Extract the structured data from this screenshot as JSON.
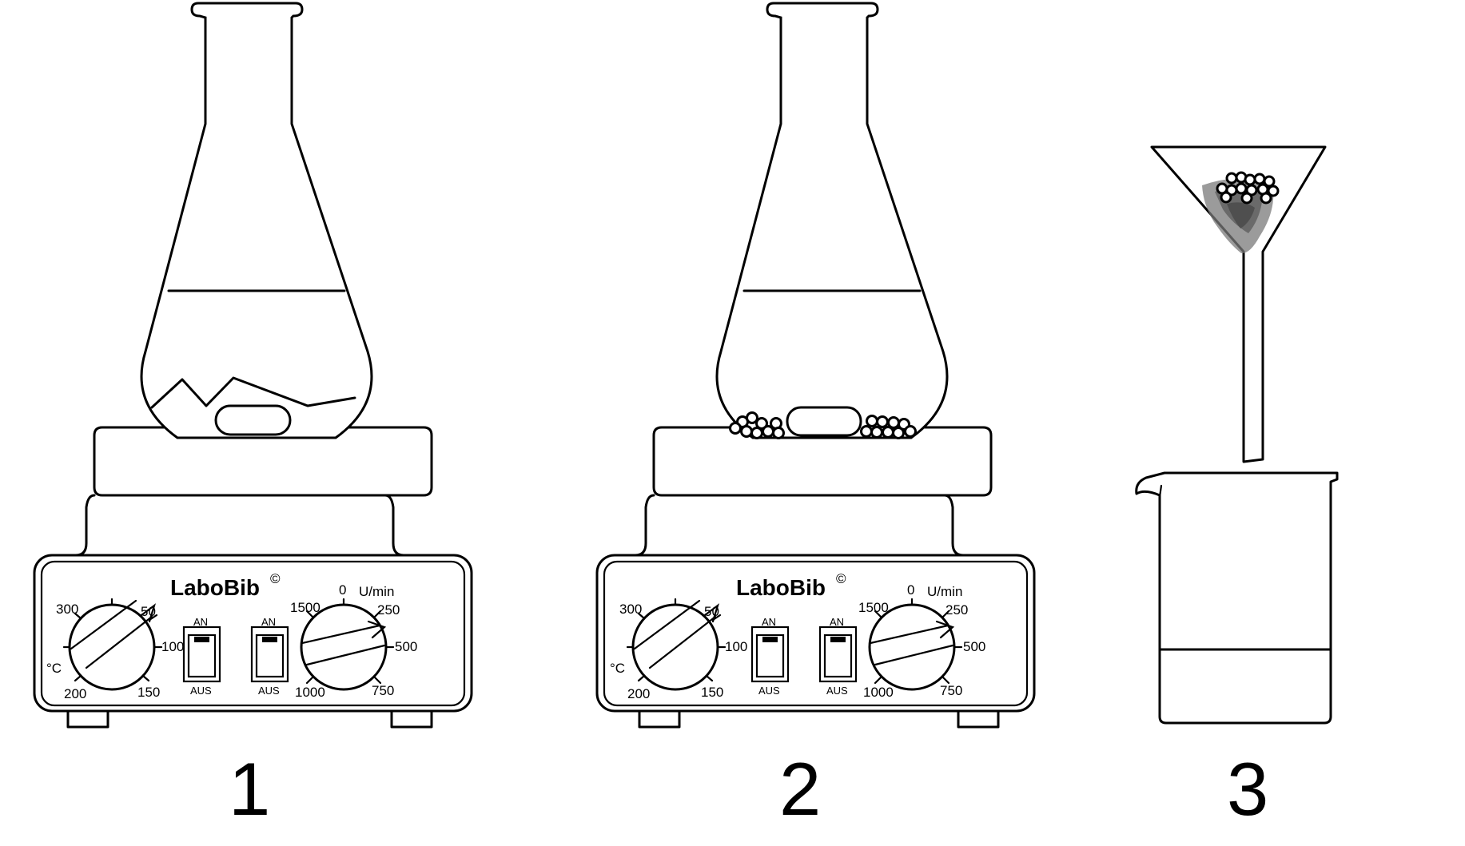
{
  "colors": {
    "ink": "#000000",
    "paper": "#ffffff",
    "filter_residue": "#7a7a7a"
  },
  "stirrer": {
    "brand": "LaboBib",
    "brand_mark": "©",
    "temp_unit": "°C",
    "temp_ticks": [
      "300",
      "50",
      "100",
      "150",
      "200"
    ],
    "speed_unit": "U/min",
    "speed_ticks": [
      "0",
      "1500",
      "250",
      "500",
      "750",
      "1000"
    ],
    "switch_on": "AN",
    "switch_off": "AUS"
  },
  "steps": [
    {
      "number": "1"
    },
    {
      "number": "2"
    },
    {
      "number": "3"
    }
  ]
}
